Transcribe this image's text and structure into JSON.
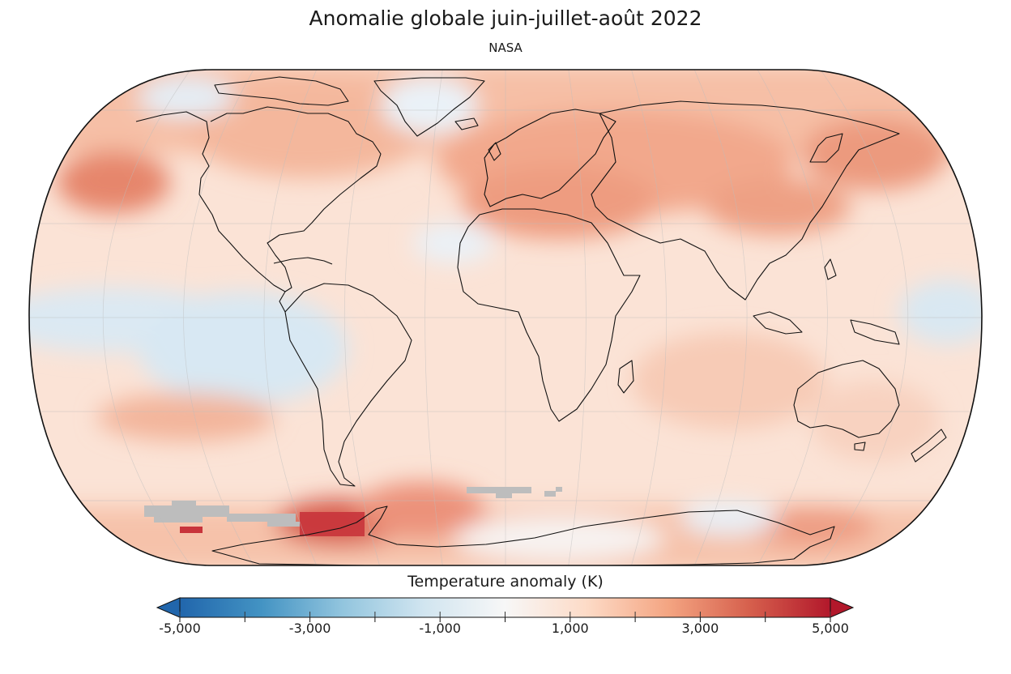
{
  "header": {
    "title": "Anomalie globale juin-juillet-août 2022",
    "subtitle": "NASA"
  },
  "colorbar": {
    "label": "Temperature anomaly (K)",
    "min": -5000,
    "max": 5000,
    "ticks": [
      {
        "value": -5000,
        "label": "-5,000"
      },
      {
        "value": -3000,
        "label": "-3,000"
      },
      {
        "value": -1000,
        "label": "-1,000"
      },
      {
        "value": 1000,
        "label": "1,000"
      },
      {
        "value": 3000,
        "label": "3,000"
      },
      {
        "value": 5000,
        "label": "5,000"
      }
    ],
    "minor_ticks": [
      -4000,
      -2000,
      0,
      2000,
      4000
    ],
    "extend": "both",
    "colormap": [
      "#2166ac",
      "#4393c3",
      "#92c5de",
      "#d1e5f0",
      "#f7f7f7",
      "#fddbc7",
      "#f4a582",
      "#d6604d",
      "#b2182b"
    ]
  },
  "map": {
    "projection": "equal-earth",
    "central_longitude": 0,
    "gridlines": true,
    "missing_data_color": "#bdbdbd",
    "landmasses": [
      "North America",
      "South America",
      "Greenland",
      "Europe",
      "Africa",
      "Asia",
      "Australia",
      "Antarctica"
    ]
  }
}
